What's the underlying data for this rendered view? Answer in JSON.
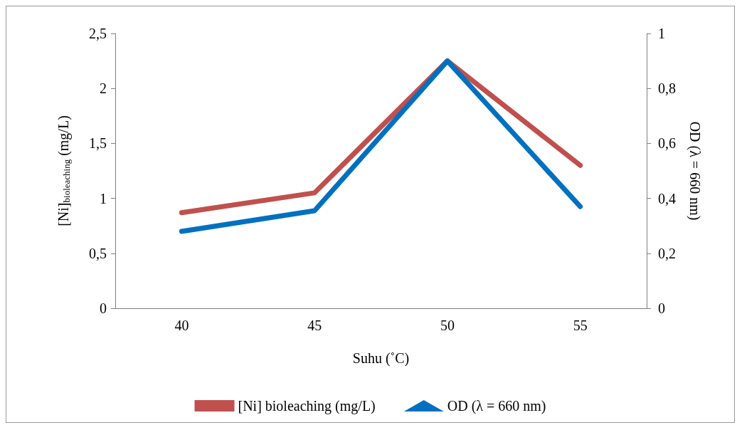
{
  "chart_data": {
    "type": "line",
    "xlabel": "Suhu (˚C)",
    "ylabel": "[Ni]$_{bioleaching}$ (mg/L)",
    "y2label": "OD (λ = 660 nm)",
    "categories": [
      "40",
      "45",
      "50",
      "55"
    ],
    "series": [
      {
        "name": "[Ni] bioleaching (mg/L)",
        "color": "#c0504d",
        "values": [
          0.87,
          1.05,
          2.25,
          1.3
        ]
      },
      {
        "name": "OD (λ = 660 nm)",
        "color": "#0070c0",
        "axis": "y2",
        "values": [
          0.28,
          0.355,
          0.9,
          0.37
        ]
      }
    ],
    "ylim": [
      0,
      2.5
    ],
    "yticks": [
      0,
      {
        "value": 0.5,
        "label": "0,5"
      },
      1,
      {
        "value": 1.5,
        "label": "1,5"
      },
      2,
      {
        "value": 2.5,
        "label": "2,5"
      }
    ],
    "y2lim": [
      0,
      1
    ],
    "y2ticks": [
      0,
      {
        "value": 0.2,
        "label": "0,2"
      },
      {
        "value": 0.4,
        "label": "0,4"
      },
      {
        "value": 0.6,
        "label": "0,6"
      },
      {
        "value": 0.8,
        "label": "0,8"
      },
      1
    ],
    "grid": false,
    "legend": "bottom"
  }
}
